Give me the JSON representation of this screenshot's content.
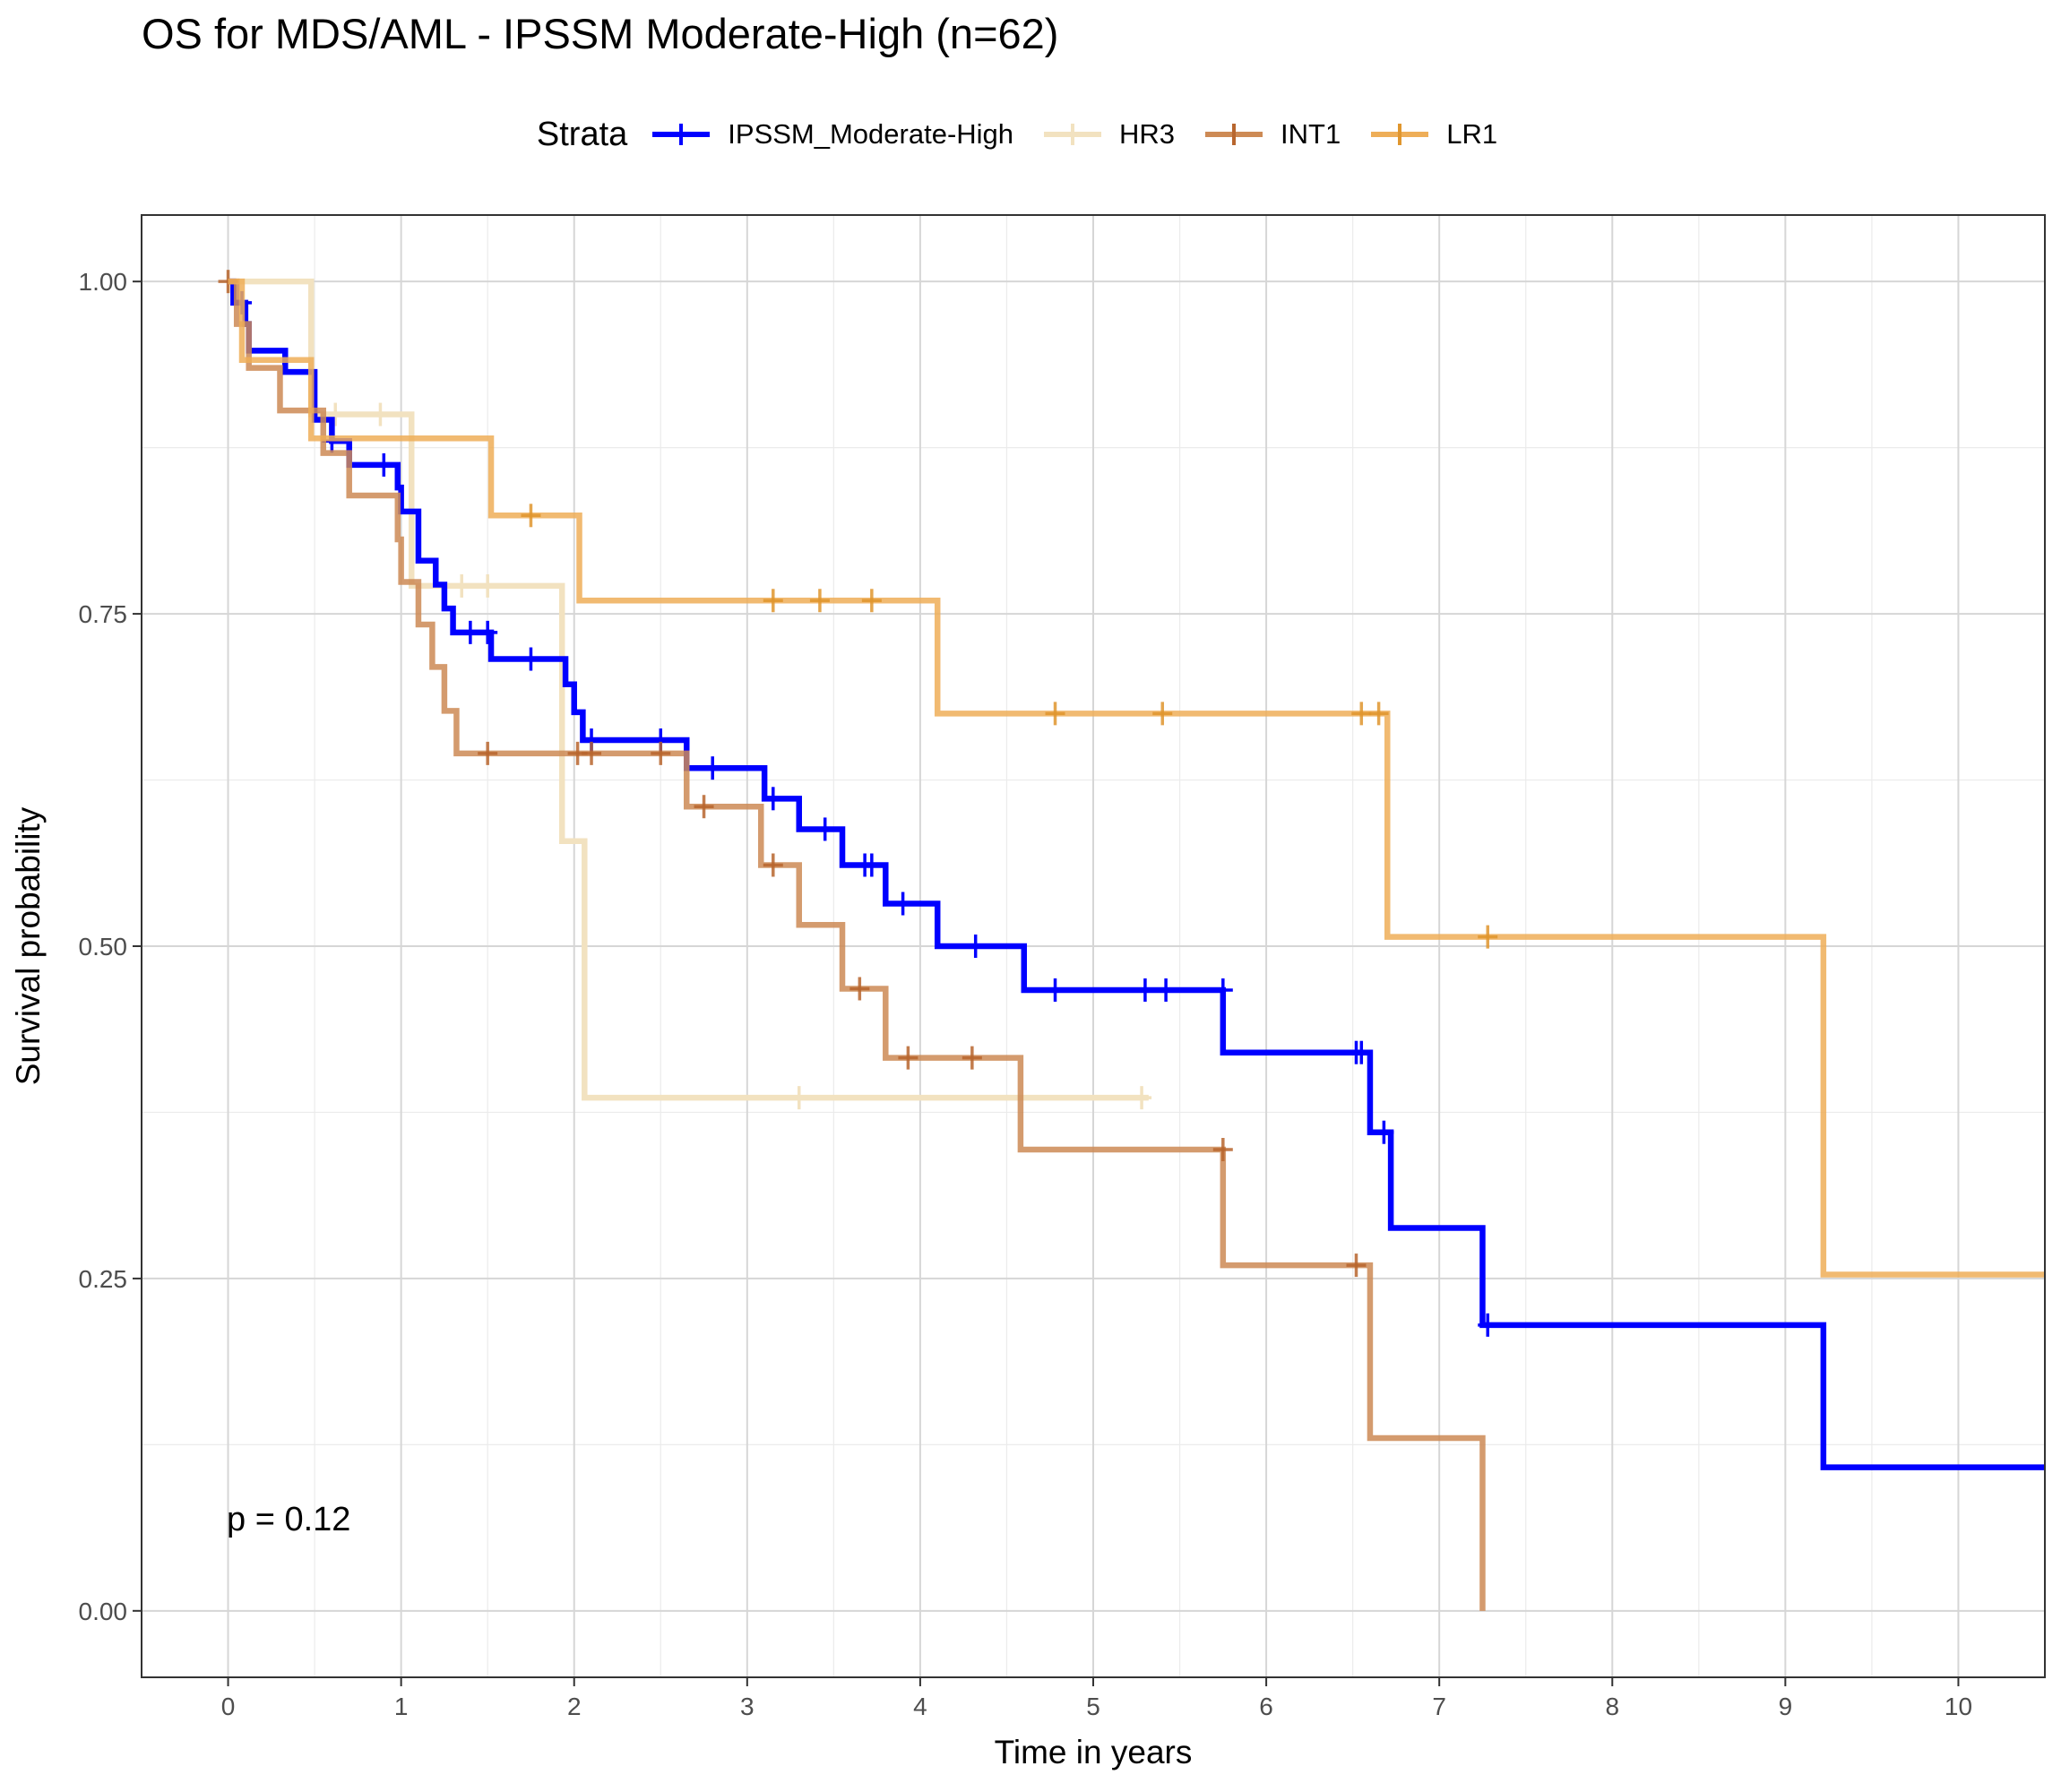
{
  "chart_data": {
    "type": "line",
    "subtype": "kaplan-meier",
    "title": "OS for MDS/AML - IPSSM Moderate-High (n=62)",
    "xlabel": "Time in years",
    "ylabel": "Survival probability",
    "xlim": [
      -0.5,
      10.5
    ],
    "ylim": [
      -0.05,
      1.05
    ],
    "xticks": [
      "0",
      "1",
      "2",
      "3",
      "4",
      "5",
      "6",
      "7",
      "8",
      "9",
      "10"
    ],
    "yticks": [
      "0.00",
      "0.25",
      "0.50",
      "0.75",
      "1.00"
    ],
    "grid": true,
    "legend_title": "Strata",
    "legend_position": "top",
    "annotation": "p = 0.12",
    "series": [
      {
        "name": "IPSSM_Moderate-High",
        "color": "#0000FF",
        "steps": [
          [
            0,
            1.0
          ],
          [
            0.03,
            0.984
          ],
          [
            0.1,
            0.968
          ],
          [
            0.12,
            0.948
          ],
          [
            0.33,
            0.932
          ],
          [
            0.5,
            0.896
          ],
          [
            0.6,
            0.88
          ],
          [
            0.7,
            0.862
          ],
          [
            0.98,
            0.845
          ],
          [
            1.0,
            0.827
          ],
          [
            1.1,
            0.79
          ],
          [
            1.2,
            0.772
          ],
          [
            1.25,
            0.754
          ],
          [
            1.3,
            0.736
          ],
          [
            1.52,
            0.716
          ],
          [
            1.95,
            0.697
          ],
          [
            2.0,
            0.676
          ],
          [
            2.05,
            0.655
          ],
          [
            2.65,
            0.634
          ],
          [
            3.1,
            0.611
          ],
          [
            3.3,
            0.588
          ],
          [
            3.55,
            0.561
          ],
          [
            3.8,
            0.532
          ],
          [
            4.1,
            0.5
          ],
          [
            4.6,
            0.467
          ],
          [
            5.75,
            0.42
          ],
          [
            6.6,
            0.36
          ],
          [
            6.72,
            0.288
          ],
          [
            7.25,
            0.215
          ],
          [
            9.22,
            0.108
          ],
          [
            10.5,
            0.108
          ]
        ],
        "censor": [
          [
            0.08,
            0.984
          ],
          [
            0.6,
            0.88
          ],
          [
            0.9,
            0.862
          ],
          [
            1.4,
            0.736
          ],
          [
            1.5,
            0.736
          ],
          [
            1.75,
            0.716
          ],
          [
            2.1,
            0.655
          ],
          [
            2.5,
            0.655
          ],
          [
            2.8,
            0.634
          ],
          [
            3.15,
            0.611
          ],
          [
            3.45,
            0.588
          ],
          [
            3.68,
            0.561
          ],
          [
            3.72,
            0.561
          ],
          [
            3.9,
            0.532
          ],
          [
            4.32,
            0.5
          ],
          [
            4.78,
            0.467
          ],
          [
            5.3,
            0.467
          ],
          [
            5.42,
            0.467
          ],
          [
            5.75,
            0.467
          ],
          [
            6.52,
            0.42
          ],
          [
            6.55,
            0.42
          ],
          [
            6.68,
            0.36
          ],
          [
            7.28,
            0.215
          ]
        ]
      },
      {
        "name": "HR3",
        "color": "#F2E2C0",
        "steps": [
          [
            0,
            1.0
          ],
          [
            0.48,
            0.9
          ],
          [
            1.06,
            0.771
          ],
          [
            1.93,
            0.579
          ],
          [
            2.06,
            0.386
          ],
          [
            5.32,
            0.386
          ]
        ],
        "censor": [
          [
            0.62,
            0.9
          ],
          [
            0.88,
            0.9
          ],
          [
            1.35,
            0.771
          ],
          [
            1.5,
            0.771
          ],
          [
            3.3,
            0.386
          ],
          [
            5.28,
            0.386
          ]
        ]
      },
      {
        "name": "INT1",
        "color": "#CD8A55",
        "steps": [
          [
            0,
            1.0
          ],
          [
            0.05,
            0.968
          ],
          [
            0.12,
            0.935
          ],
          [
            0.3,
            0.903
          ],
          [
            0.55,
            0.871
          ],
          [
            0.7,
            0.839
          ],
          [
            0.98,
            0.806
          ],
          [
            1.0,
            0.774
          ],
          [
            1.1,
            0.742
          ],
          [
            1.18,
            0.71
          ],
          [
            1.25,
            0.677
          ],
          [
            1.32,
            0.645
          ],
          [
            2.65,
            0.605
          ],
          [
            3.08,
            0.561
          ],
          [
            3.3,
            0.516
          ],
          [
            3.55,
            0.468
          ],
          [
            3.8,
            0.416
          ],
          [
            4.58,
            0.347
          ],
          [
            5.75,
            0.26
          ],
          [
            6.6,
            0.13
          ],
          [
            7.25,
            0.0
          ]
        ],
        "censor": [
          [
            0,
            1.0
          ],
          [
            1.5,
            0.645
          ],
          [
            2.02,
            0.645
          ],
          [
            2.1,
            0.645
          ],
          [
            2.5,
            0.645
          ],
          [
            2.75,
            0.605
          ],
          [
            3.15,
            0.561
          ],
          [
            3.65,
            0.468
          ],
          [
            3.93,
            0.416
          ],
          [
            4.3,
            0.416
          ],
          [
            5.75,
            0.347
          ],
          [
            6.52,
            0.26
          ]
        ]
      },
      {
        "name": "LR1",
        "color": "#EEAE58",
        "steps": [
          [
            0,
            1.0
          ],
          [
            0.08,
            0.941
          ],
          [
            0.48,
            0.882
          ],
          [
            1.52,
            0.824
          ],
          [
            2.03,
            0.76
          ],
          [
            4.1,
            0.675
          ],
          [
            6.7,
            0.507
          ],
          [
            9.22,
            0.253
          ],
          [
            10.5,
            0.253
          ]
        ],
        "censor": [
          [
            1.75,
            0.824
          ],
          [
            3.15,
            0.76
          ],
          [
            3.42,
            0.76
          ],
          [
            3.72,
            0.76
          ],
          [
            4.78,
            0.675
          ],
          [
            5.4,
            0.675
          ],
          [
            6.55,
            0.675
          ],
          [
            6.65,
            0.675
          ],
          [
            7.28,
            0.507
          ]
        ]
      }
    ]
  }
}
